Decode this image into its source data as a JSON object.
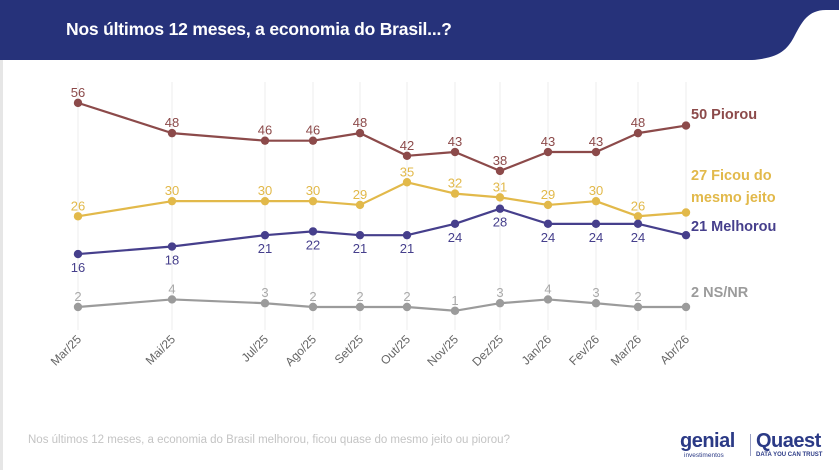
{
  "header": {
    "title": "Nos últimos 12 meses, a economia do Brasil...?",
    "background_color": "#26327a"
  },
  "footnote": "Nos últimos 12 meses, a economia do Brasil melhorou, ficou quase do mesmo jeito ou piorou?",
  "logos": {
    "genial": "genial",
    "genial_sub": "investimentos",
    "quaest": "Quaest",
    "quaest_sub": "DATA YOU CAN TRUST"
  },
  "chart_data": {
    "type": "line",
    "title": "Nos últimos 12 meses, a economia do Brasil...?",
    "xlabel": "",
    "ylabel": "",
    "ylim": [
      0,
      60
    ],
    "grid": "vertical",
    "categories": [
      "Mar/25",
      "Mai/25",
      "Jul/25",
      "Ago/25",
      "Set/25",
      "Out/25",
      "Nov/25",
      "Dez/25",
      "Jan/26",
      "Fev/26",
      "Mar/26",
      "Abr/26"
    ],
    "x_month_index": [
      0,
      2,
      4,
      5,
      6,
      7,
      8,
      9,
      10,
      11,
      12,
      13
    ],
    "series": [
      {
        "name": "Piorou",
        "end_label": "50 Piorou",
        "color": "#8c4a4a",
        "values": [
          56,
          48,
          46,
          46,
          48,
          42,
          43,
          38,
          43,
          43,
          48,
          50
        ],
        "label_position": "above"
      },
      {
        "name": "Ficou do mesmo jeito",
        "end_label": [
          "27 Ficou do",
          "mesmo jeito"
        ],
        "color": "#e2b94a",
        "values": [
          26,
          30,
          30,
          30,
          29,
          35,
          32,
          31,
          29,
          30,
          26,
          27
        ],
        "label_position": "above"
      },
      {
        "name": "Melhorou",
        "end_label": "21 Melhorou",
        "color": "#463f8c",
        "values": [
          16,
          18,
          21,
          22,
          21,
          21,
          24,
          28,
          24,
          24,
          24,
          21
        ],
        "label_position": "below"
      },
      {
        "name": "NS/NR",
        "end_label": "2 NS/NR",
        "color": "#9b9b9b",
        "values": [
          2,
          4,
          3,
          2,
          2,
          2,
          1,
          3,
          4,
          3,
          2,
          2
        ],
        "label_position": "above"
      }
    ]
  }
}
